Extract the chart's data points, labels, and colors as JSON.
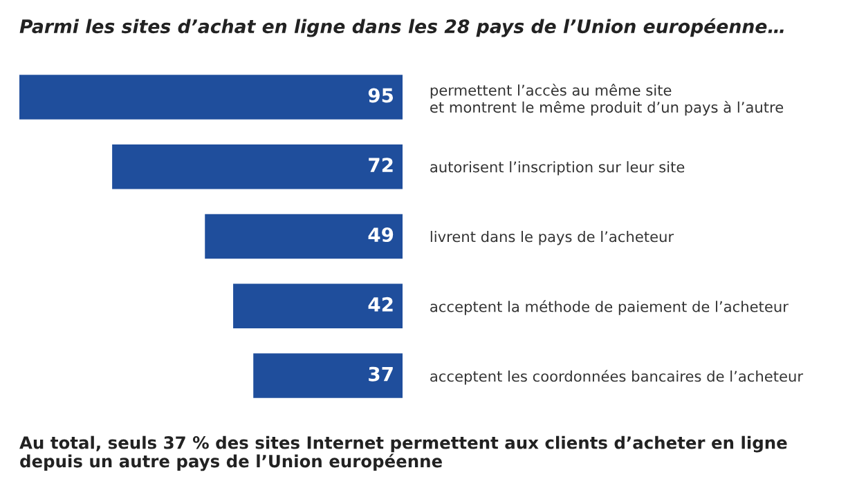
{
  "chart_data": {
    "type": "bar",
    "orientation": "horizontal",
    "title": "Parmi les sites d’achat en ligne dans les 28 pays de l’Union européenne…",
    "categories": [
      "permettent l’accès au même site\net montrent le même produit d’un pays à l’autre",
      "autorisent l’inscription sur leur site",
      "livrent dans le pays de l’acheteur",
      "acceptent la méthode de paiement de l’acheteur",
      "acceptent les coordonnées bancaires de l’acheteur"
    ],
    "values": [
      95,
      72,
      49,
      42,
      37
    ],
    "color": "#1f4e9c",
    "data_labels": true,
    "grid": false,
    "legend": false,
    "annotations": [
      "Au total, seuls 37 % des sites Internet permettent aux clients d’acheter en ligne\ndepuis un autre pays de l’Union européenne"
    ]
  }
}
